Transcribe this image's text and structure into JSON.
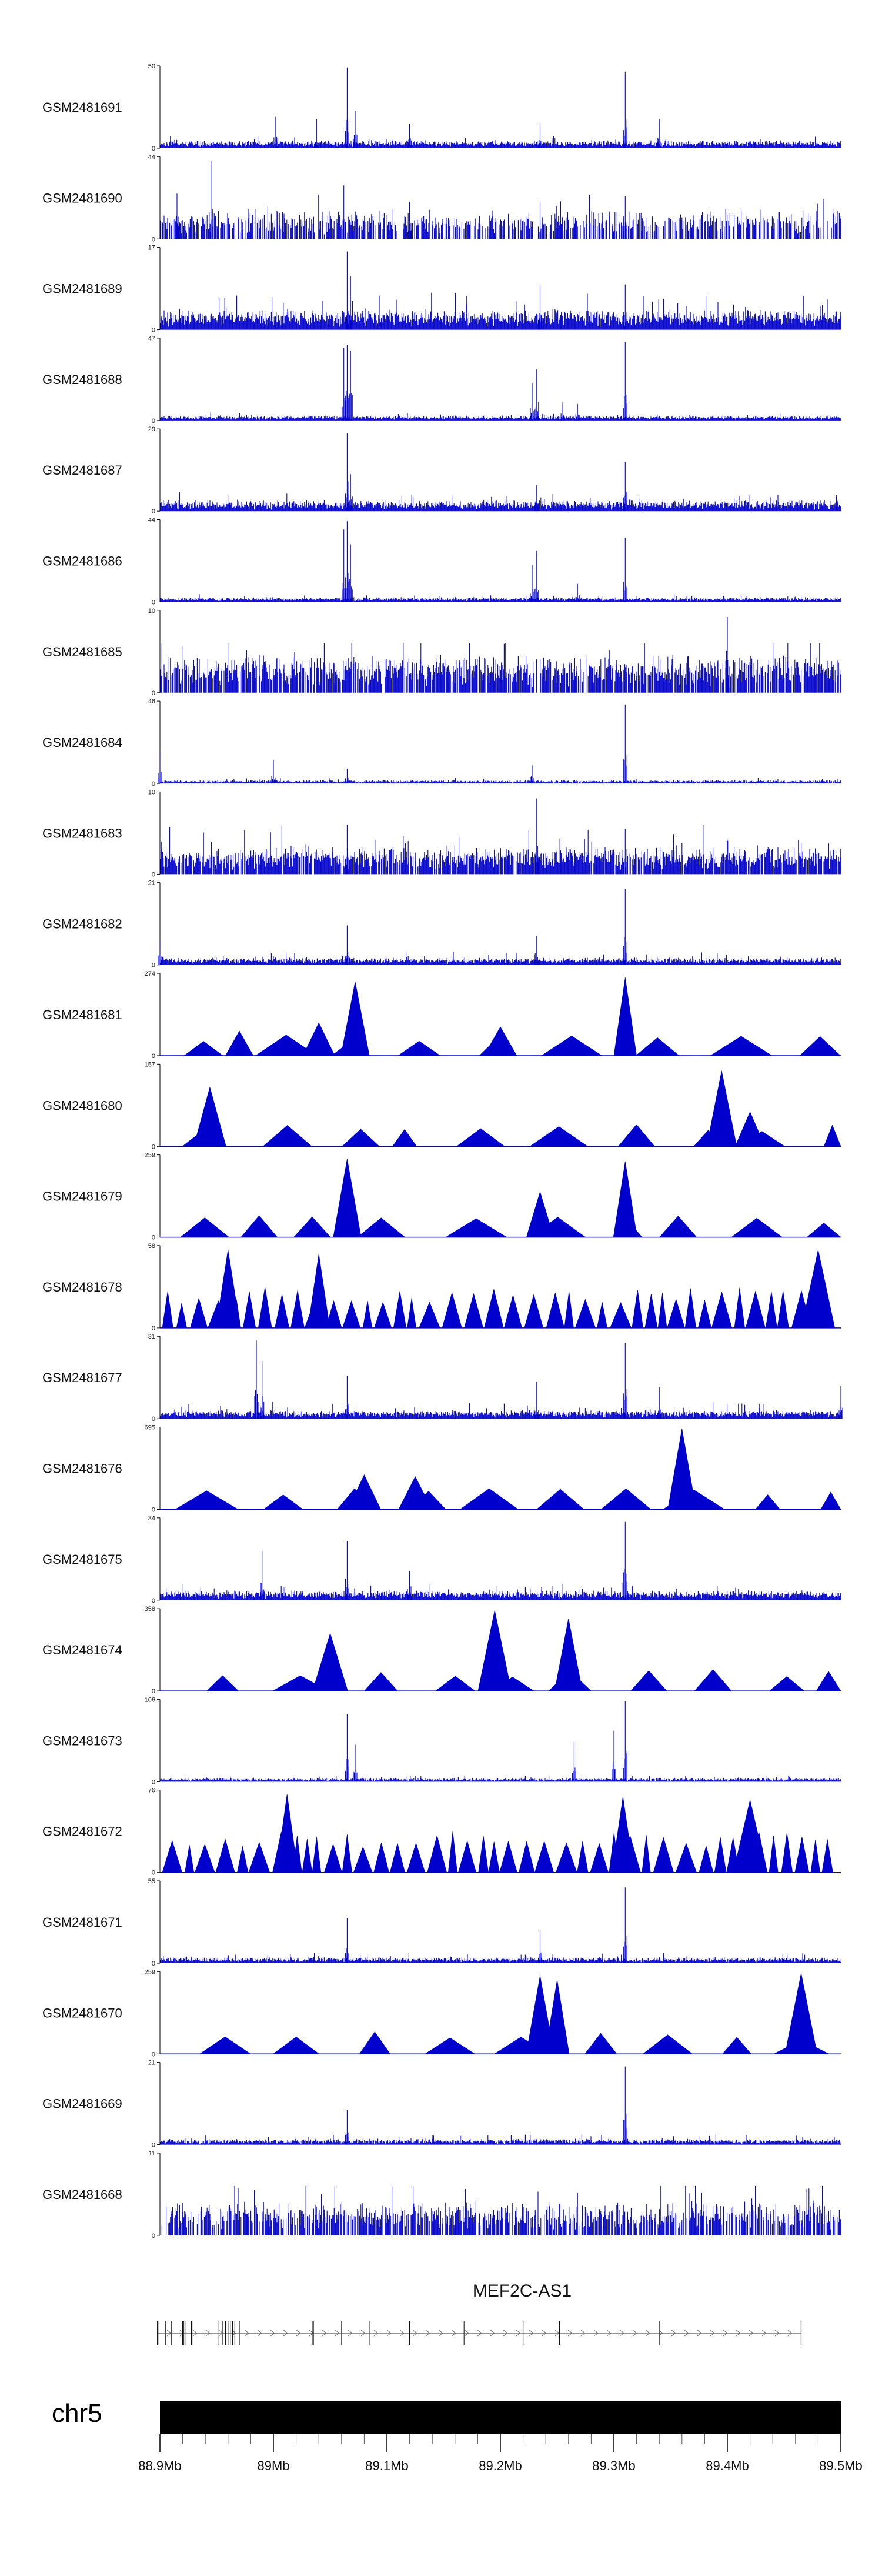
{
  "chart_data": {
    "type": "area",
    "series_color": "#0000cc",
    "tracks": [
      {
        "name": "GSM2481691",
        "ymax": 50,
        "style": "bars",
        "base": 0.05,
        "noise": 0.1,
        "density": 1.0,
        "peaks": [
          [
            89.002,
            0.38
          ],
          [
            89.038,
            0.35
          ],
          [
            89.065,
            0.98
          ],
          [
            89.072,
            0.45
          ],
          [
            89.12,
            0.3
          ],
          [
            89.235,
            0.3
          ],
          [
            89.31,
            0.93
          ],
          [
            89.34,
            0.35
          ]
        ]
      },
      {
        "name": "GSM2481690",
        "ymax": 44,
        "style": "bars",
        "base": 0.18,
        "noise": 0.4,
        "density": 0.6,
        "peaks": [
          [
            88.915,
            0.55
          ],
          [
            88.945,
            0.95
          ],
          [
            89.062,
            0.65
          ],
          [
            89.12,
            0.45
          ],
          [
            89.235,
            0.45
          ],
          [
            89.31,
            0.52
          ]
        ]
      },
      {
        "name": "GSM2481689",
        "ymax": 17,
        "style": "bars",
        "base": 0.1,
        "noise": 0.35,
        "density": 1.0,
        "peaks": [
          [
            89.065,
            0.95
          ],
          [
            89.068,
            0.65
          ],
          [
            89.235,
            0.55
          ],
          [
            89.31,
            0.55
          ]
        ]
      },
      {
        "name": "GSM2481688",
        "ymax": 47,
        "style": "bars",
        "base": 0.03,
        "noise": 0.06,
        "density": 1.0,
        "peaks": [
          [
            89.062,
            0.88
          ],
          [
            89.065,
            0.92
          ],
          [
            89.068,
            0.85
          ],
          [
            89.228,
            0.45
          ],
          [
            89.232,
            0.62
          ],
          [
            89.255,
            0.22
          ],
          [
            89.268,
            0.2
          ],
          [
            89.31,
            0.95
          ]
        ]
      },
      {
        "name": "GSM2481687",
        "ymax": 29,
        "style": "bars",
        "base": 0.06,
        "noise": 0.18,
        "density": 1.0,
        "peaks": [
          [
            89.065,
            0.95
          ],
          [
            89.068,
            0.45
          ],
          [
            89.232,
            0.32
          ],
          [
            89.31,
            0.6
          ]
        ]
      },
      {
        "name": "GSM2481686",
        "ymax": 44,
        "style": "bars",
        "base": 0.03,
        "noise": 0.06,
        "density": 1.0,
        "peaks": [
          [
            89.062,
            0.88
          ],
          [
            89.065,
            0.98
          ],
          [
            89.068,
            0.7
          ],
          [
            89.228,
            0.45
          ],
          [
            89.232,
            0.62
          ],
          [
            89.268,
            0.22
          ],
          [
            89.31,
            0.78
          ]
        ]
      },
      {
        "name": "GSM2481685",
        "ymax": 10,
        "style": "bars",
        "base": 0.22,
        "noise": 0.55,
        "density": 0.8,
        "peaks": [
          [
            89.4,
            0.92
          ]
        ]
      },
      {
        "name": "GSM2481684",
        "ymax": 46,
        "style": "bars",
        "base": 0.02,
        "noise": 0.05,
        "density": 1.0,
        "peaks": [
          [
            88.9,
            0.4
          ],
          [
            89.0,
            0.28
          ],
          [
            89.065,
            0.18
          ],
          [
            89.228,
            0.22
          ],
          [
            89.31,
            0.96
          ]
        ]
      },
      {
        "name": "GSM2481683",
        "ymax": 10,
        "style": "bars",
        "base": 0.15,
        "noise": 0.45,
        "density": 0.9,
        "peaks": [
          [
            89.232,
            0.92
          ],
          [
            89.065,
            0.6
          ],
          [
            89.31,
            0.55
          ]
        ]
      },
      {
        "name": "GSM2481682",
        "ymax": 21,
        "style": "bars",
        "base": 0.04,
        "noise": 0.12,
        "density": 1.0,
        "peaks": [
          [
            88.9,
            0.3
          ],
          [
            89.065,
            0.48
          ],
          [
            89.232,
            0.35
          ],
          [
            89.31,
            0.92
          ]
        ]
      },
      {
        "name": "GSM2481681",
        "ymax": 274,
        "style": "tri",
        "seed": 81,
        "spikes": [
          [
            88.97,
            0.3
          ],
          [
            89.04,
            0.4
          ],
          [
            89.072,
            0.9
          ],
          [
            89.31,
            0.95
          ],
          [
            89.2,
            0.35
          ]
        ]
      },
      {
        "name": "GSM2481680",
        "ymax": 157,
        "style": "tri",
        "seed": 80,
        "spikes": [
          [
            88.944,
            0.72
          ],
          [
            89.395,
            0.92
          ],
          [
            89.42,
            0.42
          ]
        ]
      },
      {
        "name": "GSM2481679",
        "ymax": 259,
        "style": "tri",
        "seed": 79,
        "spikes": [
          [
            89.065,
            0.95
          ],
          [
            89.235,
            0.55
          ],
          [
            89.31,
            0.92
          ]
        ]
      },
      {
        "name": "GSM2481678",
        "ymax": 58,
        "style": "tri-dense",
        "seed": 78,
        "spikes": [
          [
            88.96,
            0.95
          ],
          [
            89.04,
            0.9
          ],
          [
            89.48,
            0.95
          ]
        ]
      },
      {
        "name": "GSM2481677",
        "ymax": 31,
        "style": "bars",
        "base": 0.04,
        "noise": 0.16,
        "density": 1.0,
        "peaks": [
          [
            88.985,
            0.95
          ],
          [
            88.99,
            0.7
          ],
          [
            89.065,
            0.52
          ],
          [
            89.232,
            0.45
          ],
          [
            89.31,
            0.92
          ],
          [
            89.34,
            0.38
          ],
          [
            89.5,
            0.4
          ]
        ]
      },
      {
        "name": "GSM2481676",
        "ymax": 695,
        "style": "tri",
        "seed": 76,
        "spikes": [
          [
            89.36,
            0.98
          ],
          [
            89.08,
            0.42
          ],
          [
            89.125,
            0.4
          ]
        ]
      },
      {
        "name": "GSM2481675",
        "ymax": 34,
        "style": "bars",
        "base": 0.05,
        "noise": 0.16,
        "density": 1.0,
        "peaks": [
          [
            88.99,
            0.6
          ],
          [
            89.065,
            0.72
          ],
          [
            89.12,
            0.35
          ],
          [
            89.31,
            0.95
          ]
        ]
      },
      {
        "name": "GSM2481674",
        "ymax": 358,
        "style": "tri",
        "seed": 74,
        "spikes": [
          [
            89.195,
            0.98
          ],
          [
            89.26,
            0.88
          ],
          [
            89.05,
            0.7
          ]
        ]
      },
      {
        "name": "GSM2481673",
        "ymax": 106,
        "style": "bars",
        "base": 0.02,
        "noise": 0.06,
        "density": 1.0,
        "peaks": [
          [
            89.065,
            0.82
          ],
          [
            89.072,
            0.45
          ],
          [
            89.265,
            0.48
          ],
          [
            89.3,
            0.62
          ],
          [
            89.31,
            0.98
          ]
        ]
      },
      {
        "name": "GSM2481672",
        "ymax": 76,
        "style": "tri-dense",
        "seed": 72,
        "spikes": [
          [
            89.012,
            0.95
          ],
          [
            89.308,
            0.92
          ],
          [
            89.42,
            0.88
          ]
        ]
      },
      {
        "name": "GSM2481671",
        "ymax": 55,
        "style": "bars",
        "base": 0.03,
        "noise": 0.1,
        "density": 1.0,
        "peaks": [
          [
            89.065,
            0.55
          ],
          [
            89.235,
            0.4
          ],
          [
            89.31,
            0.92
          ]
        ]
      },
      {
        "name": "GSM2481670",
        "ymax": 259,
        "style": "tri",
        "seed": 70,
        "spikes": [
          [
            89.235,
            0.95
          ],
          [
            89.25,
            0.9
          ],
          [
            89.465,
            0.98
          ]
        ]
      },
      {
        "name": "GSM2481669",
        "ymax": 21,
        "style": "bars",
        "base": 0.03,
        "noise": 0.1,
        "density": 1.0,
        "peaks": [
          [
            89.065,
            0.42
          ],
          [
            89.31,
            0.95
          ]
        ]
      },
      {
        "name": "GSM2481668",
        "ymax": 11,
        "style": "bars",
        "base": 0.18,
        "noise": 0.55,
        "density": 0.7,
        "peaks": []
      }
    ],
    "gene": {
      "name": "MEF2C-AS1",
      "start": 88.898,
      "end": 89.465,
      "exons": [
        88.898,
        88.905,
        88.91,
        88.92,
        88.921,
        88.923,
        88.928,
        88.952,
        88.955,
        88.958,
        88.96,
        88.962,
        88.964,
        88.966,
        88.97,
        89.035,
        89.06,
        89.085,
        89.12,
        89.168,
        89.22,
        89.252,
        89.34,
        89.465
      ]
    },
    "chromosome": {
      "name": "chr5",
      "xmin": 88.9,
      "xmax": 89.5,
      "ticks": [
        {
          "value": 88.9,
          "label": "88.9Mb"
        },
        {
          "value": 89.0,
          "label": "89Mb"
        },
        {
          "value": 89.1,
          "label": "89.1Mb"
        },
        {
          "value": 89.2,
          "label": "89.2Mb"
        },
        {
          "value": 89.3,
          "label": "89.3Mb"
        },
        {
          "value": 89.4,
          "label": "89.4Mb"
        },
        {
          "value": 89.5,
          "label": "89.5Mb"
        }
      ],
      "minor_tick_step": 0.02
    }
  }
}
